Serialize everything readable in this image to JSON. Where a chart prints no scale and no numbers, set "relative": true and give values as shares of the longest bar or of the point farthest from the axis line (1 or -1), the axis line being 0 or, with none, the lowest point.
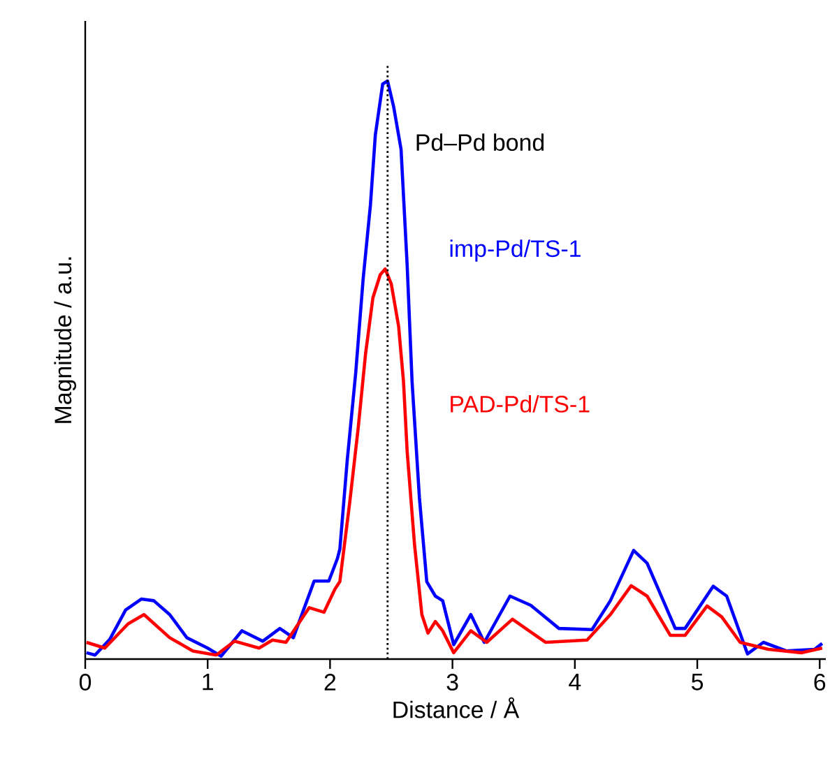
{
  "chart_data": {
    "type": "line",
    "xlabel": "Distance / Å",
    "ylabel": "Magnitude / a.u.",
    "relative": true,
    "legend": false,
    "marker": "none",
    "xlim": [
      0,
      6.05
    ],
    "xticks": [
      0,
      1,
      2,
      3,
      4,
      5,
      6
    ],
    "ref_lines": [
      {
        "axis": "x",
        "value": 2.47,
        "label": "Pd–Pd bond",
        "color": "#000000",
        "line_style": "dotted"
      }
    ],
    "series": [
      {
        "name": "imp-Pd/TS-1",
        "color": "#0000ff",
        "x": [
          0.01,
          0.08,
          0.2,
          0.33,
          0.46,
          0.56,
          0.69,
          0.83,
          1.0,
          1.11,
          1.28,
          1.45,
          1.59,
          1.7,
          1.87,
          1.99,
          2.06,
          2.08,
          2.14,
          2.21,
          2.27,
          2.33,
          2.37,
          2.43,
          2.47,
          2.52,
          2.58,
          2.63,
          2.67,
          2.73,
          2.79,
          2.86,
          2.92,
          3.01,
          3.15,
          3.26,
          3.47,
          3.64,
          3.87,
          4.14,
          4.29,
          4.48,
          4.59,
          4.82,
          4.9,
          5.13,
          5.24,
          5.41,
          5.54,
          5.73,
          5.96,
          6.02
        ],
        "values": [
          0.011,
          0.007,
          0.034,
          0.085,
          0.104,
          0.101,
          0.077,
          0.037,
          0.019,
          0.005,
          0.049,
          0.031,
          0.053,
          0.037,
          0.135,
          0.135,
          0.174,
          0.19,
          0.343,
          0.496,
          0.657,
          0.786,
          0.907,
          0.995,
          1,
          0.955,
          0.882,
          0.681,
          0.48,
          0.279,
          0.134,
          0.109,
          0.101,
          0.025,
          0.077,
          0.029,
          0.109,
          0.093,
          0.053,
          0.051,
          0.101,
          0.188,
          0.166,
          0.053,
          0.053,
          0.126,
          0.109,
          0.009,
          0.029,
          0.014,
          0.017,
          0.027
        ]
      },
      {
        "name": "PAD-Pd/TS-1",
        "color": "#ff0000",
        "x": [
          0.01,
          0.16,
          0.35,
          0.48,
          0.69,
          0.88,
          1.07,
          1.22,
          1.42,
          1.53,
          1.64,
          1.83,
          1.95,
          2.04,
          2.08,
          2.16,
          2.23,
          2.29,
          2.35,
          2.41,
          2.45,
          2.5,
          2.56,
          2.6,
          2.63,
          2.69,
          2.75,
          2.8,
          2.86,
          2.92,
          3.01,
          3.15,
          3.28,
          3.49,
          3.76,
          4.1,
          4.29,
          4.46,
          4.59,
          4.78,
          4.9,
          5.08,
          5.2,
          5.35,
          5.58,
          5.85,
          6.02
        ],
        "values": [
          0.029,
          0.019,
          0.061,
          0.077,
          0.037,
          0.014,
          0.007,
          0.031,
          0.019,
          0.033,
          0.029,
          0.089,
          0.081,
          0.121,
          0.134,
          0.27,
          0.4,
          0.528,
          0.625,
          0.665,
          0.675,
          0.649,
          0.576,
          0.48,
          0.359,
          0.198,
          0.077,
          0.045,
          0.065,
          0.049,
          0.011,
          0.049,
          0.029,
          0.069,
          0.029,
          0.033,
          0.077,
          0.127,
          0.109,
          0.041,
          0.041,
          0.092,
          0.073,
          0.029,
          0.017,
          0.011,
          0.019
        ]
      }
    ]
  }
}
